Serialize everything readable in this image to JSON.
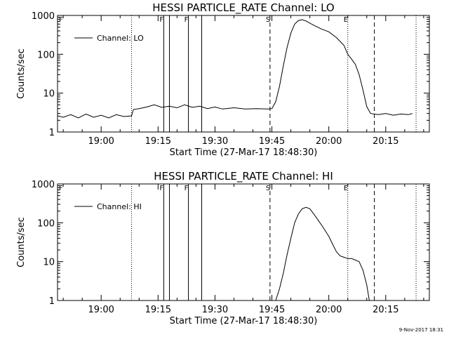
{
  "footer": {
    "timestamp": "9-Nov-2017 18:31"
  },
  "chart_data": [
    {
      "type": "line",
      "title": "HESSI PARTICLE_RATE Channel: LO",
      "xlabel": "Start Time (27-Mar-17 18:48:30)",
      "ylabel": "Counts/sec",
      "yscale": "log",
      "ylim": [
        1,
        1000
      ],
      "xlim": [
        "18:48:30",
        "20:26:30"
      ],
      "x_ticks": [
        "19:00",
        "19:15",
        "19:30",
        "19:45",
        "20:00",
        "20:15"
      ],
      "y_ticks": [
        "1",
        "10",
        "100",
        "1000"
      ],
      "legend": {
        "entries": [
          "Channel: LO"
        ],
        "placement": "top-left"
      },
      "markers": [
        {
          "label": "",
          "time": "19:08:00",
          "style": "dotted"
        },
        {
          "label": "F",
          "time": "19:16:30",
          "style": "solid"
        },
        {
          "label": "",
          "time": "19:18:00",
          "style": "solid"
        },
        {
          "label": "F",
          "time": "19:23:00",
          "style": "solid"
        },
        {
          "label": "",
          "time": "19:26:30",
          "style": "solid"
        },
        {
          "label": "S",
          "time": "19:44:30",
          "style": "dashed"
        },
        {
          "label": "E",
          "time": "20:05:00",
          "style": "dotted"
        },
        {
          "label": "",
          "time": "20:12:00",
          "style": "dashed"
        },
        {
          "label": "",
          "time": "20:23:00",
          "style": "dotted"
        }
      ],
      "corner_mark": "F",
      "series": [
        {
          "name": "Channel: LO",
          "points": [
            [
              "18:48:30",
              2.6
            ],
            [
              "18:50:00",
              2.4
            ],
            [
              "18:52:00",
              2.8
            ],
            [
              "18:54:00",
              2.3
            ],
            [
              "18:56:00",
              2.9
            ],
            [
              "18:58:00",
              2.4
            ],
            [
              "19:00:00",
              2.7
            ],
            [
              "19:02:00",
              2.3
            ],
            [
              "19:04:00",
              2.8
            ],
            [
              "19:06:00",
              2.5
            ],
            [
              "19:08:00",
              2.6
            ],
            [
              "19:08:30",
              3.8
            ],
            [
              "19:10:00",
              4.0
            ],
            [
              "19:12:00",
              4.4
            ],
            [
              "19:14:00",
              5.0
            ],
            [
              "19:16:00",
              4.3
            ],
            [
              "19:18:00",
              4.6
            ],
            [
              "19:20:00",
              4.2
            ],
            [
              "19:22:00",
              5.0
            ],
            [
              "19:24:00",
              4.3
            ],
            [
              "19:26:00",
              4.6
            ],
            [
              "19:28:00",
              4.0
            ],
            [
              "19:30:00",
              4.4
            ],
            [
              "19:32:00",
              3.9
            ],
            [
              "19:35:00",
              4.2
            ],
            [
              "19:38:00",
              3.9
            ],
            [
              "19:41:00",
              4.0
            ],
            [
              "19:44:00",
              3.9
            ],
            [
              "19:45:00",
              4.0
            ],
            [
              "19:46:00",
              6.0
            ],
            [
              "19:47:00",
              15.0
            ],
            [
              "19:48:00",
              50.0
            ],
            [
              "19:49:00",
              150.0
            ],
            [
              "19:50:00",
              350.0
            ],
            [
              "19:51:00",
              600.0
            ],
            [
              "19:52:00",
              740.0
            ],
            [
              "19:53:00",
              780.0
            ],
            [
              "19:54:00",
              720.0
            ],
            [
              "19:56:00",
              560.0
            ],
            [
              "19:58:00",
              450.0
            ],
            [
              "20:00:00",
              380.0
            ],
            [
              "20:02:00",
              270.0
            ],
            [
              "20:04:00",
              170.0
            ],
            [
              "20:05:00",
              100.0
            ],
            [
              "20:06:00",
              75.0
            ],
            [
              "20:07:00",
              55.0
            ],
            [
              "20:08:00",
              30.0
            ],
            [
              "20:09:00",
              12.0
            ],
            [
              "20:10:00",
              4.5
            ],
            [
              "20:11:00",
              3.0
            ],
            [
              "20:13:00",
              2.8
            ],
            [
              "20:15:00",
              3.0
            ],
            [
              "20:17:00",
              2.7
            ],
            [
              "20:19:00",
              2.9
            ],
            [
              "20:21:00",
              2.8
            ],
            [
              "20:22:00",
              3.0
            ]
          ]
        }
      ]
    },
    {
      "type": "line",
      "title": "HESSI PARTICLE_RATE Channel: HI",
      "xlabel": "Start Time (27-Mar-17 18:48:30)",
      "ylabel": "Counts/sec",
      "yscale": "log",
      "ylim": [
        1,
        1000
      ],
      "xlim": [
        "18:48:30",
        "20:26:30"
      ],
      "x_ticks": [
        "19:00",
        "19:15",
        "19:30",
        "19:45",
        "20:00",
        "20:15"
      ],
      "y_ticks": [
        "1",
        "10",
        "100",
        "1000"
      ],
      "legend": {
        "entries": [
          "Channel: HI"
        ],
        "placement": "top-left"
      },
      "markers": [
        {
          "label": "",
          "time": "19:08:00",
          "style": "dotted"
        },
        {
          "label": "F",
          "time": "19:16:30",
          "style": "solid"
        },
        {
          "label": "",
          "time": "19:18:00",
          "style": "solid"
        },
        {
          "label": "F",
          "time": "19:23:00",
          "style": "solid"
        },
        {
          "label": "",
          "time": "19:26:30",
          "style": "solid"
        },
        {
          "label": "S",
          "time": "19:44:30",
          "style": "dashed"
        },
        {
          "label": "E",
          "time": "20:05:00",
          "style": "dotted"
        },
        {
          "label": "",
          "time": "20:12:00",
          "style": "dashed"
        },
        {
          "label": "",
          "time": "20:23:00",
          "style": "dotted"
        }
      ],
      "corner_mark": "F",
      "series": [
        {
          "name": "Channel: HI",
          "points": [
            [
              "19:46:00",
              1.0
            ],
            [
              "19:47:00",
              2.0
            ],
            [
              "19:48:00",
              5.0
            ],
            [
              "19:49:00",
              15.0
            ],
            [
              "19:50:00",
              40.0
            ],
            [
              "19:51:00",
              100.0
            ],
            [
              "19:52:00",
              170.0
            ],
            [
              "19:53:00",
              230.0
            ],
            [
              "19:54:00",
              250.0
            ],
            [
              "19:55:00",
              230.0
            ],
            [
              "19:56:00",
              170.0
            ],
            [
              "19:58:00",
              90.0
            ],
            [
              "20:00:00",
              45.0
            ],
            [
              "20:01:00",
              28.0
            ],
            [
              "20:02:00",
              18.0
            ],
            [
              "20:03:00",
              14.0
            ],
            [
              "20:04:00",
              13.0
            ],
            [
              "20:05:00",
              12.0
            ],
            [
              "20:06:00",
              12.0
            ],
            [
              "20:07:00",
              11.0
            ],
            [
              "20:08:00",
              10.0
            ],
            [
              "20:09:00",
              6.0
            ],
            [
              "20:10:00",
              2.5
            ],
            [
              "20:10:40",
              1.0
            ]
          ]
        }
      ]
    }
  ]
}
